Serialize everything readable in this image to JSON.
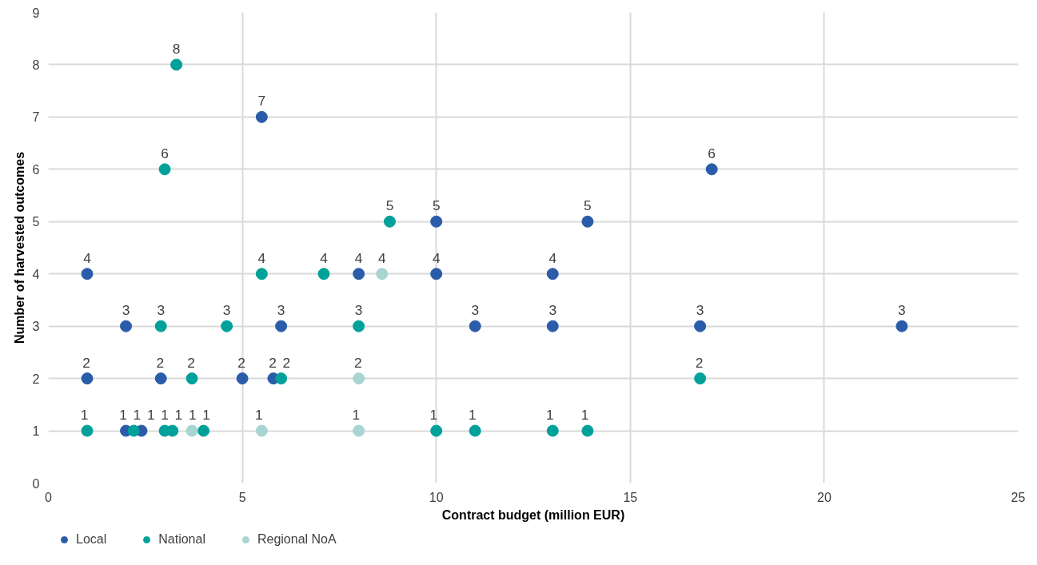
{
  "chart_data": {
    "type": "scatter",
    "xlabel": "Contract budget (million EUR)",
    "ylabel": "Number of harvested outcomes",
    "xlim": [
      0,
      25
    ],
    "xticks": [
      0,
      5,
      10,
      15,
      20,
      25
    ],
    "ylim": [
      0,
      9
    ],
    "yticks": [
      0,
      1,
      2,
      3,
      4,
      5,
      6,
      7,
      8,
      9
    ],
    "grid": true,
    "legend": "bottom",
    "marker": "circle",
    "data_labels": true,
    "series": [
      {
        "name": "Local",
        "color": "#2a5caa",
        "x": [
          1.0,
          1.0,
          2.0,
          2.0,
          2.4,
          2.9,
          5.0,
          5.5,
          5.8,
          6.0,
          8.0,
          10.0,
          10.0,
          11.0,
          13.0,
          13.0,
          13.9,
          16.8,
          17.1,
          22.0
        ],
        "values": [
          4,
          2,
          3,
          1,
          1,
          2,
          2,
          7,
          2,
          3,
          4,
          5,
          4,
          3,
          4,
          3,
          5,
          3,
          6,
          3
        ]
      },
      {
        "name": "National",
        "color": "#00a19a",
        "x": [
          1.0,
          2.2,
          3.0,
          3.2,
          4.0,
          3.3,
          3.0,
          2.9,
          3.7,
          4.6,
          5.5,
          6.0,
          7.1,
          8.0,
          8.8,
          10.0,
          11.0,
          13.0,
          13.9,
          16.8
        ],
        "values": [
          1,
          1,
          1,
          1,
          1,
          8,
          6,
          3,
          2,
          3,
          4,
          2,
          4,
          3,
          5,
          1,
          1,
          1,
          1,
          2
        ]
      },
      {
        "name": "Regional NoA",
        "color": "#a8d4d2",
        "x": [
          3.7,
          5.5,
          8.0,
          8.0,
          8.6
        ],
        "values": [
          1,
          1,
          2,
          1,
          4
        ]
      }
    ]
  }
}
